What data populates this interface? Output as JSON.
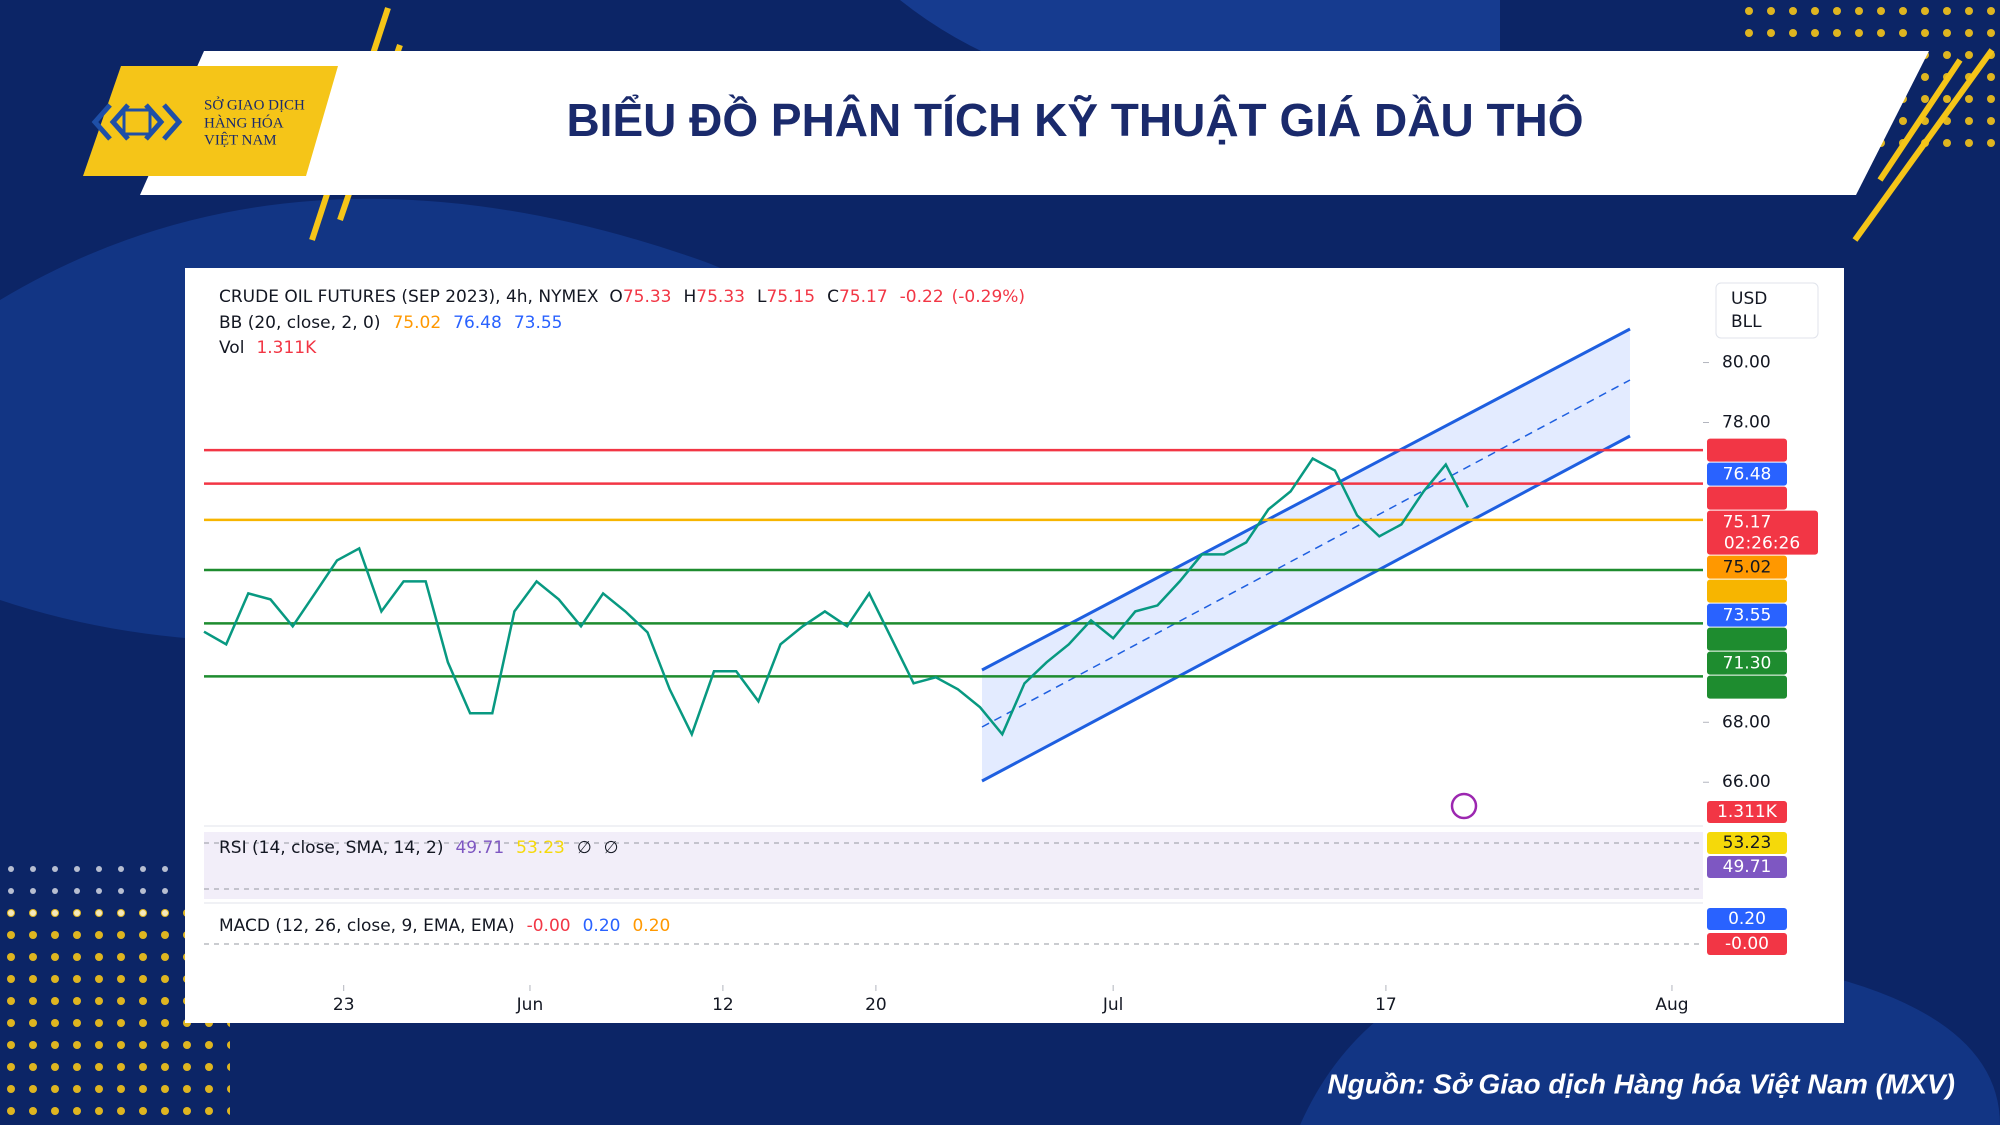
{
  "header": {
    "logo_lines": [
      "SỞ GIAO DỊCH",
      "HÀNG HÓA",
      "VIỆT NAM"
    ],
    "title": "BIỂU ĐỒ PHÂN TÍCH KỸ THUẬT GIÁ DẦU THÔ"
  },
  "chart_data": {
    "type": "line",
    "instrument": "CRUDE OIL FUTURES (SEP 2023), 4h, NYMEX",
    "ohlc": [
      {
        "name": "O",
        "value": 75.33
      },
      {
        "name": "H",
        "value": 75.33
      },
      {
        "name": "L",
        "value": 75.15
      },
      {
        "name": "C",
        "value": 75.17
      }
    ],
    "change": -0.22,
    "change_percent": {
      "value": -0.29,
      "label": "(-0.29%)"
    },
    "value_color": "#f23645",
    "bb": {
      "name": "BB (20, close, 2, 0)",
      "values": [
        75.02,
        76.48,
        73.55
      ],
      "colors": [
        "#ff9800",
        "#2962ff",
        "#2962ff"
      ]
    },
    "volume": {
      "name": "Vol",
      "value": {
        "value": 1311,
        "label": "1.311K"
      },
      "color": "#f23645"
    },
    "currency": [
      "USD",
      "BLL"
    ],
    "values": [
      71.02,
      70.6,
      72.3,
      72.1,
      71.2,
      72.3,
      73.4,
      73.8,
      71.7,
      72.7,
      72.7,
      70.0,
      68.3,
      68.3,
      71.7,
      72.7,
      72.1,
      71.2,
      72.3,
      71.7,
      71.0,
      69.1,
      67.6,
      69.7,
      69.7,
      68.7,
      70.6,
      71.2,
      71.7,
      71.2,
      72.3,
      70.8,
      69.3,
      69.5,
      69.1,
      68.5,
      67.6,
      69.3,
      70.0,
      70.6,
      71.4,
      70.8,
      71.7,
      71.9,
      72.7,
      73.6,
      73.6,
      74.0,
      75.1,
      75.7,
      76.8,
      76.4,
      74.9,
      74.2,
      74.6,
      75.7,
      76.6,
      75.17
    ],
    "color": "#089981",
    "xlim": [
      0,
      67.6
    ],
    "xticks": [
      {
        "value": 6.3,
        "label": "23"
      },
      {
        "value": 14.7,
        "label": "Jun"
      },
      {
        "value": 23.4,
        "label": "12"
      },
      {
        "value": 30.3,
        "label": "20"
      },
      {
        "value": 41.0,
        "label": "Jul"
      },
      {
        "value": 53.3,
        "label": "17"
      },
      {
        "value": 66.2,
        "label": "Aug"
      }
    ],
    "ylim": [
      64.64,
      82.72
    ],
    "yticks": [
      {
        "value": 80,
        "label": "80.00"
      },
      {
        "value": 78,
        "label": "78.00"
      },
      {
        "value": 68,
        "label": "68.00"
      },
      {
        "value": 66,
        "label": "66.00"
      }
    ],
    "grid": false,
    "levels": [
      {
        "value": 77.08,
        "color": "#f23645"
      },
      {
        "value": 75.96,
        "color": "#f23645"
      },
      {
        "value": 74.75,
        "color": "#f7b500"
      },
      {
        "value": 73.08,
        "color": "#1e8c2f"
      },
      {
        "value": 71.3,
        "label": "71.30",
        "color": "#1e8c2f"
      },
      {
        "value": 69.53,
        "color": "#1e8c2f"
      }
    ],
    "countdown": "02:26:26",
    "rsi": {
      "name": "RSI (14, close, SMA, 14, 2)",
      "values": [
        49.71,
        53.23
      ],
      "colors": [
        "#7e57c2",
        "#f5d90a"
      ],
      "flags": [
        "∅",
        "∅"
      ]
    },
    "macd": {
      "name": "MACD (12, 26, close, 9, EMA, EMA)",
      "values": [
        {
          "value": 0,
          "label": "-0.00"
        },
        {
          "value": 0.2,
          "label": "0.20"
        },
        {
          "value": 0.2,
          "label": "0.20"
        }
      ],
      "colors": [
        "#f23645",
        "#2962ff",
        "#ff9800"
      ]
    }
  },
  "source": "Nguồn: Sở Giao dịch Hàng hóa Việt Nam (MXV)"
}
